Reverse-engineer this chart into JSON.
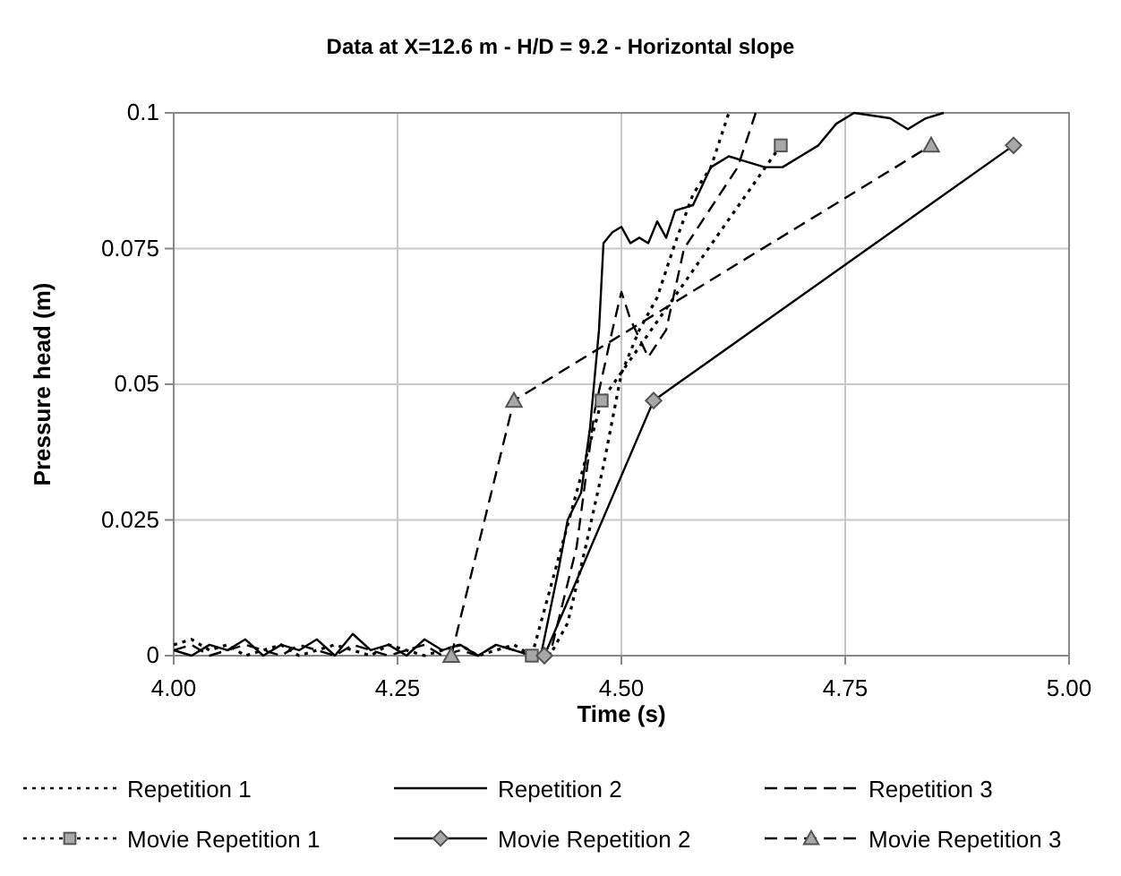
{
  "chart_data": {
    "type": "line",
    "title": "Data at X=12.6 m - H/D = 9.2 - Horizontal slope",
    "xlabel": "Time (s)",
    "ylabel": "Pressure head (m)",
    "xlim": [
      4.0,
      5.0
    ],
    "xticks": [
      {
        "value": 4.0,
        "label": "4.00"
      },
      {
        "value": 4.25,
        "label": "4.25"
      },
      {
        "value": 4.5,
        "label": "4.50"
      },
      {
        "value": 4.75,
        "label": "4.75"
      },
      {
        "value": 5.0,
        "label": "5.00"
      }
    ],
    "ylim": [
      0,
      0.1
    ],
    "yticks": [
      0,
      0.025,
      0.05,
      0.075,
      0.1
    ],
    "grid": true,
    "legend": "bottom",
    "series": [
      {
        "name": "Repetition 1",
        "color": "#000000",
        "line_style": "dotted",
        "marker": "none",
        "x": [
          4.0,
          4.02,
          4.04,
          4.06,
          4.08,
          4.1,
          4.12,
          4.14,
          4.16,
          4.18,
          4.2,
          4.22,
          4.24,
          4.26,
          4.28,
          4.3,
          4.32,
          4.34,
          4.36,
          4.38,
          4.4,
          4.42,
          4.44,
          4.46,
          4.48,
          4.5,
          4.52,
          4.54,
          4.56,
          4.58,
          4.6,
          4.62
        ],
        "values": [
          0.002,
          0.003,
          0.001,
          0.002,
          0.0,
          0.001,
          0.002,
          0.0,
          0.001,
          0.002,
          0.001,
          0.0,
          0.002,
          0.001,
          0.0,
          0.001,
          0.002,
          0.0,
          0.001,
          0.002,
          0.0,
          0.0,
          0.006,
          0.02,
          0.035,
          0.052,
          0.06,
          0.066,
          0.076,
          0.085,
          0.09,
          0.1
        ]
      },
      {
        "name": "Repetition 2",
        "color": "#000000",
        "line_style": "solid",
        "marker": "none",
        "x": [
          4.0,
          4.02,
          4.04,
          4.06,
          4.08,
          4.1,
          4.12,
          4.14,
          4.16,
          4.18,
          4.2,
          4.22,
          4.24,
          4.26,
          4.28,
          4.3,
          4.32,
          4.34,
          4.36,
          4.38,
          4.4,
          4.41,
          4.42,
          4.43,
          4.44,
          4.455,
          4.465,
          4.475,
          4.48,
          4.49,
          4.5,
          4.51,
          4.52,
          4.53,
          4.54,
          4.55,
          4.56,
          4.58,
          4.6,
          4.62,
          4.64,
          4.66,
          4.68,
          4.7,
          4.72,
          4.74,
          4.76,
          4.8,
          4.82,
          4.84,
          4.86
        ],
        "values": [
          0.001,
          0.0,
          0.002,
          0.001,
          0.003,
          0.0,
          0.002,
          0.001,
          0.003,
          0.0,
          0.004,
          0.001,
          0.002,
          0.0,
          0.003,
          0.001,
          0.002,
          0.0,
          0.002,
          0.001,
          0.0,
          0.0,
          0.008,
          0.016,
          0.025,
          0.03,
          0.042,
          0.06,
          0.076,
          0.078,
          0.079,
          0.076,
          0.077,
          0.076,
          0.08,
          0.077,
          0.082,
          0.083,
          0.09,
          0.092,
          0.091,
          0.09,
          0.09,
          0.092,
          0.094,
          0.098,
          0.1,
          0.099,
          0.097,
          0.099,
          0.1
        ]
      },
      {
        "name": "Repetition 3",
        "color": "#000000",
        "line_style": "dashed",
        "marker": "none",
        "x": [
          4.0,
          4.02,
          4.04,
          4.06,
          4.08,
          4.1,
          4.12,
          4.14,
          4.16,
          4.18,
          4.2,
          4.22,
          4.24,
          4.26,
          4.28,
          4.3,
          4.32,
          4.34,
          4.36,
          4.38,
          4.4,
          4.42,
          4.45,
          4.47,
          4.49,
          4.5,
          4.51,
          4.53,
          4.55,
          4.57,
          4.59,
          4.61,
          4.63,
          4.65
        ],
        "values": [
          0.001,
          0.002,
          0.0,
          0.001,
          0.002,
          0.001,
          0.0,
          0.002,
          0.001,
          0.0,
          0.002,
          0.001,
          0.0,
          0.001,
          0.002,
          0.0,
          0.001,
          0.0,
          0.002,
          0.001,
          0.0,
          0.0,
          0.02,
          0.045,
          0.06,
          0.067,
          0.062,
          0.055,
          0.06,
          0.075,
          0.08,
          0.085,
          0.09,
          0.1
        ]
      },
      {
        "name": "Movie Repetition 1",
        "color": "#000000",
        "line_style": "dotted",
        "marker": "square",
        "x": [
          4.4,
          4.478,
          4.678
        ],
        "values": [
          0,
          0.047,
          0.094
        ]
      },
      {
        "name": "Movie Repetition 2",
        "color": "#000000",
        "line_style": "solid",
        "marker": "diamond",
        "x": [
          4.414,
          4.536,
          4.938
        ],
        "values": [
          0,
          0.047,
          0.094
        ]
      },
      {
        "name": "Movie Repetition 3",
        "color": "#000000",
        "line_style": "dashed",
        "marker": "triangle",
        "x": [
          4.31,
          4.38,
          4.846
        ],
        "values": [
          0,
          0.047,
          0.094
        ]
      }
    ]
  }
}
